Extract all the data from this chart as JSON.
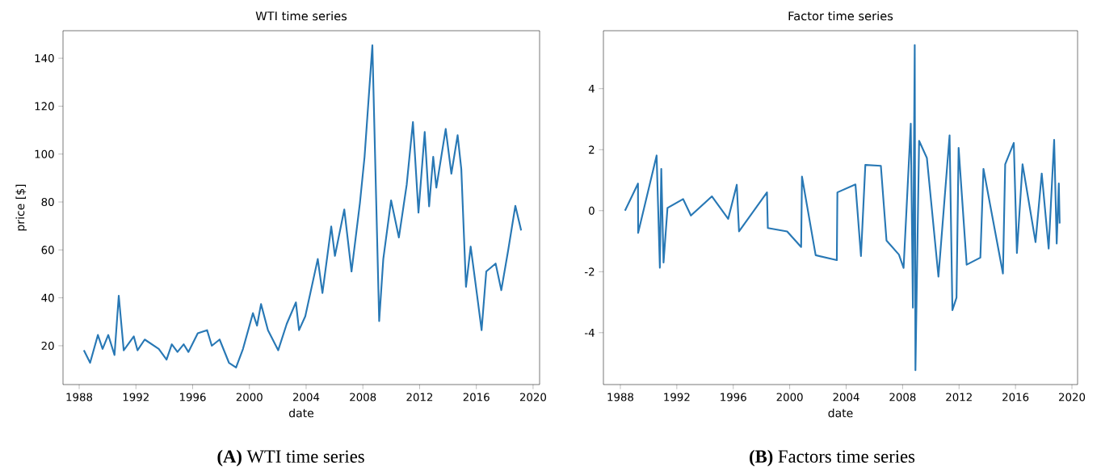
{
  "chart_data": [
    {
      "type": "line",
      "title": "WTI time series",
      "xlabel": "date",
      "ylabel": "price [$]",
      "color": "#2878b5",
      "xlim": [
        1986.86,
        2020.46
      ],
      "ylim": [
        3.8,
        151.5
      ],
      "xticks": [
        1988,
        1992,
        1996,
        2000,
        2004,
        2008,
        2012,
        2016,
        2020
      ],
      "yticks": [
        20,
        40,
        60,
        80,
        100,
        120,
        140
      ],
      "x": [
        1988.33,
        1988.77,
        1989.32,
        1989.65,
        1990.05,
        1990.49,
        1990.79,
        1991.14,
        1991.85,
        1992.11,
        1992.62,
        1993.61,
        1994.16,
        1994.53,
        1994.93,
        1995.37,
        1995.7,
        1996.36,
        1997.02,
        1997.35,
        1997.9,
        1998.56,
        1999.06,
        1999.55,
        2000.25,
        2000.54,
        2000.82,
        2001.31,
        2002.03,
        2002.63,
        2003.28,
        2003.5,
        2003.94,
        2004.82,
        2005.15,
        2005.77,
        2006.03,
        2006.69,
        2007.2,
        2007.79,
        2008.12,
        2008.67,
        2008.89,
        2009.15,
        2009.44,
        2009.99,
        2010.54,
        2011.09,
        2011.53,
        2011.92,
        2012.36,
        2012.67,
        2012.96,
        2013.18,
        2013.84,
        2014.24,
        2014.68,
        2014.94,
        2015.27,
        2015.6,
        2016.04,
        2016.37,
        2016.7,
        2017.36,
        2017.76,
        2018.24,
        2018.75,
        2019.16
      ],
      "values": [
        18.1,
        12.9,
        24.5,
        18.7,
        24.5,
        16.1,
        40.9,
        18.1,
        23.9,
        18.1,
        22.6,
        18.7,
        14.2,
        20.6,
        17.4,
        20.6,
        17.4,
        25.2,
        26.5,
        20,
        22.6,
        12.9,
        10.9,
        18.7,
        33.6,
        28.4,
        37.4,
        26.5,
        18.1,
        29.1,
        38.1,
        26.5,
        32.3,
        56.2,
        42.0,
        69.8,
        57.5,
        76.9,
        51.0,
        79.5,
        98.9,
        145.4,
        92.4,
        30.3,
        56.2,
        80.7,
        65.2,
        87.2,
        113.4,
        75.6,
        109.2,
        78.2,
        98.9,
        86.0,
        110.5,
        91.8,
        107.9,
        93.7,
        44.6,
        61.4,
        41.6,
        26.5,
        51.0,
        54.3,
        43.2,
        59.7,
        78.4,
        68.1
      ],
      "annotations": [
        "**(A)** WTI time series"
      ]
    },
    {
      "type": "line",
      "title": "Factor time series",
      "xlabel": "date",
      "color": "#2878b5",
      "xlim": [
        1986.8,
        2020.4
      ],
      "ylim": [
        -5.7,
        5.9
      ],
      "xticks": [
        1988,
        1992,
        1996,
        2000,
        2004,
        2008,
        2012,
        2016,
        2020
      ],
      "yticks": [
        -4,
        -2,
        0,
        2,
        4
      ],
      "x": [
        1988.33,
        1989.25,
        1989.26,
        1990.57,
        1990.8,
        1990.9,
        1991.06,
        1991.34,
        1992.45,
        1993.0,
        1994.49,
        1995.64,
        1996.25,
        1996.41,
        1998.39,
        1998.45,
        1999.82,
        2000.81,
        2000.87,
        2001.84,
        2003.34,
        2003.38,
        2004.66,
        2005.05,
        2005.36,
        2006.46,
        2006.86,
        2007.74,
        2008.07,
        2008.58,
        2008.73,
        2008.86,
        2008.91,
        2009.17,
        2009.72,
        2010.54,
        2011.33,
        2011.53,
        2011.82,
        2011.97,
        2012.54,
        2013.51,
        2013.73,
        2015.11,
        2015.27,
        2015.88,
        2016.1,
        2016.5,
        2017.42,
        2017.86,
        2018.35,
        2018.74,
        2018.92,
        2019.07,
        2019.13
      ],
      "values": [
        0,
        0.89,
        -0.73,
        1.81,
        -1.87,
        1.37,
        -1.7,
        0.09,
        0.38,
        -0.16,
        0.47,
        -0.27,
        0.85,
        -0.68,
        0.6,
        -0.57,
        -0.68,
        -1.19,
        1.12,
        -1.46,
        -1.62,
        0.6,
        0.86,
        -1.49,
        1.5,
        1.47,
        -0.98,
        -1.44,
        -1.88,
        2.85,
        -3.18,
        5.43,
        -5.23,
        2.29,
        1.73,
        -2.16,
        2.47,
        -3.26,
        -2.85,
        2.06,
        -1.77,
        -1.54,
        1.37,
        -2.06,
        1.52,
        2.22,
        -1.39,
        1.52,
        -1.03,
        1.22,
        -1.24,
        2.32,
        -1.08,
        0.89,
        -0.42
      ],
      "annotations": [
        "**(B)** Factors time series"
      ]
    }
  ]
}
